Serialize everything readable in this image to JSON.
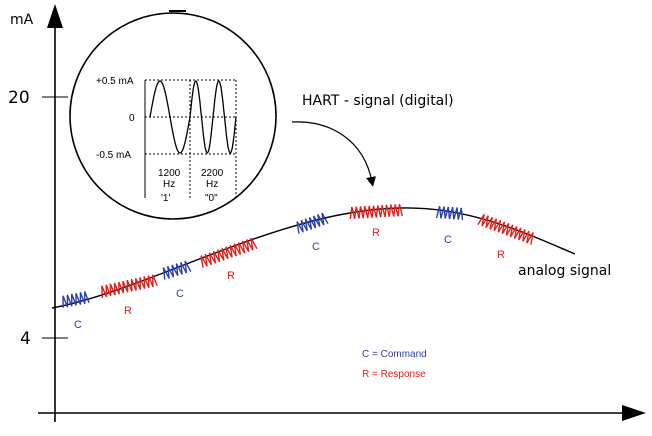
{
  "axes": {
    "y_unit": "mA",
    "y_tick_top": "20",
    "y_tick_bottom": "4"
  },
  "inset": {
    "ylabel_top": "+0.5 mA",
    "ylabel_mid": "0",
    "ylabel_bottom": "-0.5 mA",
    "freq1_line1": "1200",
    "freq1_line2": "Hz",
    "bit1": "'1'",
    "freq2_line1": "2200",
    "freq2_line2": "Hz",
    "bit2": "\"0\""
  },
  "labels": {
    "hart": "HART - signal (digital)",
    "analog": "analog signal"
  },
  "packets": [
    {
      "letter": "C",
      "color": "#2b3fae"
    },
    {
      "letter": "R",
      "color": "#e0201c"
    },
    {
      "letter": "C",
      "color": "#2b3fae"
    },
    {
      "letter": "R",
      "color": "#e0201c"
    },
    {
      "letter": "C",
      "color": "#2b3fae"
    },
    {
      "letter": "R",
      "color": "#e0201c"
    },
    {
      "letter": "C",
      "color": "#2b3fae"
    },
    {
      "letter": "R",
      "color": "#e0201c"
    }
  ],
  "legend": {
    "command": "C = Command",
    "response": "R = Response"
  },
  "colors": {
    "command": "#2b3fae",
    "response": "#e0201c",
    "line": "#000000"
  }
}
